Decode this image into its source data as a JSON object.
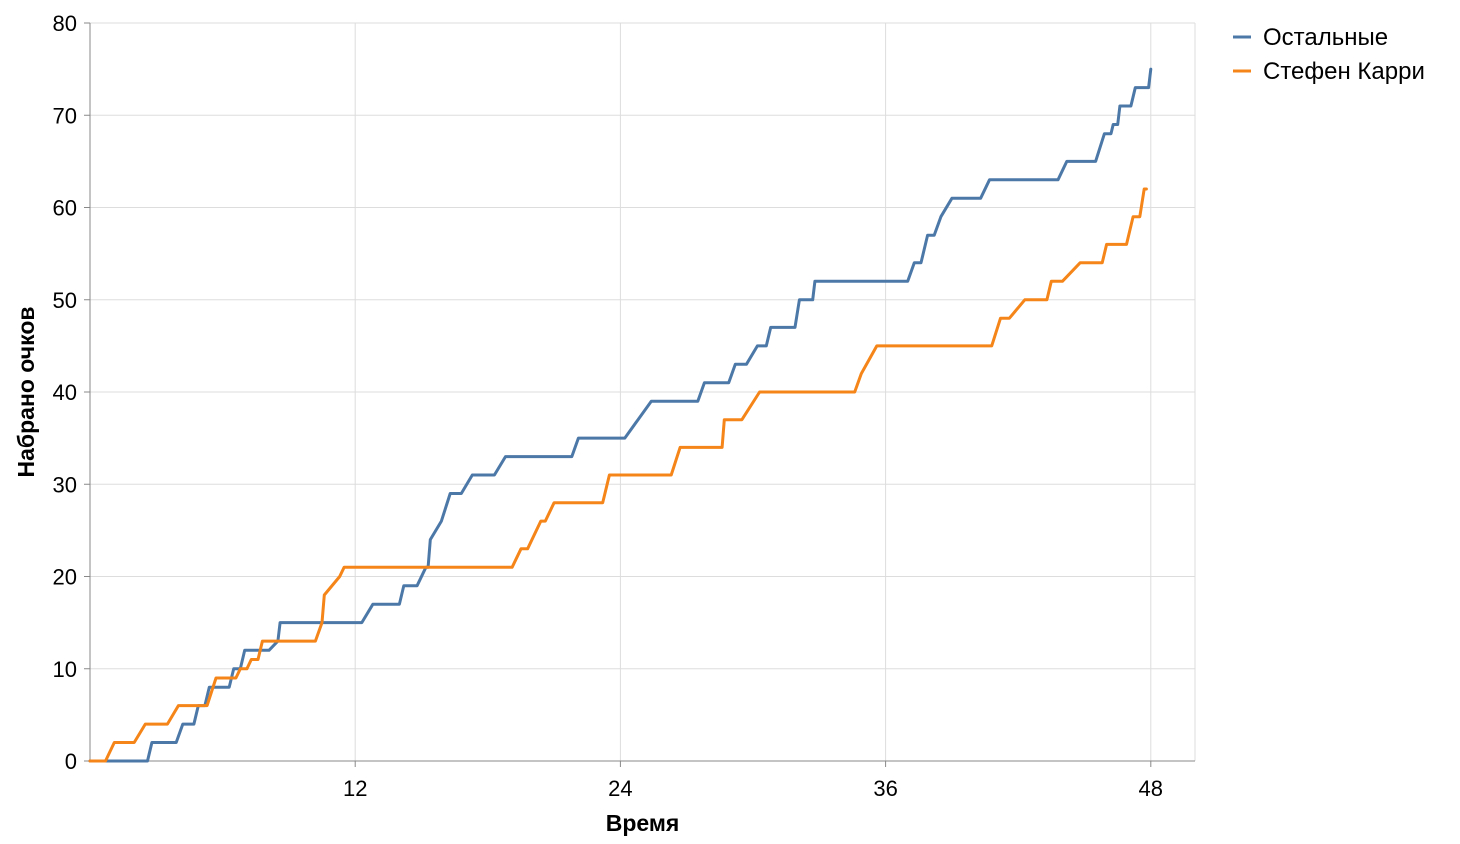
{
  "chart_data": {
    "type": "line",
    "title": "",
    "xlabel": "Время",
    "ylabel": "Набрано очков",
    "xlim": [
      0,
      50
    ],
    "ylim": [
      0,
      80
    ],
    "x_ticks": [
      12,
      24,
      36,
      48
    ],
    "y_ticks": [
      0,
      10,
      20,
      30,
      40,
      50,
      60,
      70,
      80
    ],
    "grid": true,
    "legend_position": "top-right",
    "series": [
      {
        "name": "Остальные",
        "color": "#4c78a8",
        "points": [
          [
            0,
            0
          ],
          [
            2.6,
            0
          ],
          [
            2.8,
            2
          ],
          [
            3.9,
            2
          ],
          [
            4.2,
            4
          ],
          [
            4.7,
            4
          ],
          [
            4.9,
            6
          ],
          [
            5.2,
            6
          ],
          [
            5.4,
            8
          ],
          [
            6.3,
            8
          ],
          [
            6.5,
            10
          ],
          [
            6.8,
            10
          ],
          [
            7.0,
            12
          ],
          [
            8.1,
            12
          ],
          [
            8.5,
            13
          ],
          [
            8.6,
            15
          ],
          [
            12.3,
            15
          ],
          [
            12.8,
            17
          ],
          [
            14.0,
            17
          ],
          [
            14.2,
            19
          ],
          [
            14.8,
            19
          ],
          [
            15.2,
            21
          ],
          [
            15.3,
            21
          ],
          [
            15.4,
            24
          ],
          [
            15.9,
            26
          ],
          [
            16.3,
            29
          ],
          [
            16.8,
            29
          ],
          [
            17.3,
            31
          ],
          [
            18.3,
            31
          ],
          [
            18.8,
            33
          ],
          [
            21.8,
            33
          ],
          [
            22.1,
            35
          ],
          [
            24.2,
            35
          ],
          [
            25.4,
            39
          ],
          [
            27.5,
            39
          ],
          [
            27.8,
            41
          ],
          [
            28.9,
            41
          ],
          [
            29.2,
            43
          ],
          [
            29.7,
            43
          ],
          [
            30.2,
            45
          ],
          [
            30.6,
            45
          ],
          [
            30.8,
            47
          ],
          [
            31.9,
            47
          ],
          [
            32.1,
            50
          ],
          [
            32.7,
            50
          ],
          [
            32.8,
            52
          ],
          [
            37.0,
            52
          ],
          [
            37.3,
            54
          ],
          [
            37.6,
            54
          ],
          [
            37.9,
            57
          ],
          [
            38.2,
            57
          ],
          [
            38.5,
            59
          ],
          [
            39.0,
            61
          ],
          [
            40.3,
            61
          ],
          [
            40.7,
            63
          ],
          [
            43.8,
            63
          ],
          [
            44.2,
            65
          ],
          [
            45.5,
            65
          ],
          [
            45.9,
            68
          ],
          [
            46.2,
            68
          ],
          [
            46.3,
            69
          ],
          [
            46.5,
            69
          ],
          [
            46.6,
            71
          ],
          [
            47.1,
            71
          ],
          [
            47.3,
            73
          ],
          [
            47.9,
            73
          ],
          [
            48.0,
            75
          ]
        ]
      },
      {
        "name": "Стефен Карри",
        "color": "#f58518",
        "points": [
          [
            0,
            0
          ],
          [
            0.7,
            0
          ],
          [
            1.1,
            2
          ],
          [
            2.0,
            2
          ],
          [
            2.5,
            4
          ],
          [
            3.5,
            4
          ],
          [
            4.0,
            6
          ],
          [
            5.3,
            6
          ],
          [
            5.7,
            9
          ],
          [
            6.6,
            9
          ],
          [
            6.8,
            10
          ],
          [
            7.1,
            10
          ],
          [
            7.3,
            11
          ],
          [
            7.6,
            11
          ],
          [
            7.8,
            13
          ],
          [
            10.2,
            13
          ],
          [
            10.5,
            15
          ],
          [
            10.6,
            18
          ],
          [
            11.3,
            20
          ],
          [
            11.5,
            21
          ],
          [
            19.1,
            21
          ],
          [
            19.5,
            23
          ],
          [
            19.8,
            23
          ],
          [
            20.4,
            26
          ],
          [
            20.6,
            26
          ],
          [
            21.0,
            28
          ],
          [
            23.2,
            28
          ],
          [
            23.5,
            31
          ],
          [
            26.3,
            31
          ],
          [
            26.7,
            34
          ],
          [
            28.6,
            34
          ],
          [
            28.7,
            37
          ],
          [
            29.5,
            37
          ],
          [
            30.3,
            40
          ],
          [
            34.6,
            40
          ],
          [
            34.9,
            42
          ],
          [
            35.6,
            45
          ],
          [
            40.8,
            45
          ],
          [
            41.2,
            48
          ],
          [
            41.6,
            48
          ],
          [
            42.3,
            50
          ],
          [
            43.3,
            50
          ],
          [
            43.5,
            52
          ],
          [
            44.0,
            52
          ],
          [
            44.8,
            54
          ],
          [
            45.8,
            54
          ],
          [
            46.0,
            56
          ],
          [
            46.9,
            56
          ],
          [
            47.2,
            59
          ],
          [
            47.5,
            59
          ],
          [
            47.7,
            62
          ],
          [
            47.8,
            62
          ]
        ]
      }
    ]
  }
}
